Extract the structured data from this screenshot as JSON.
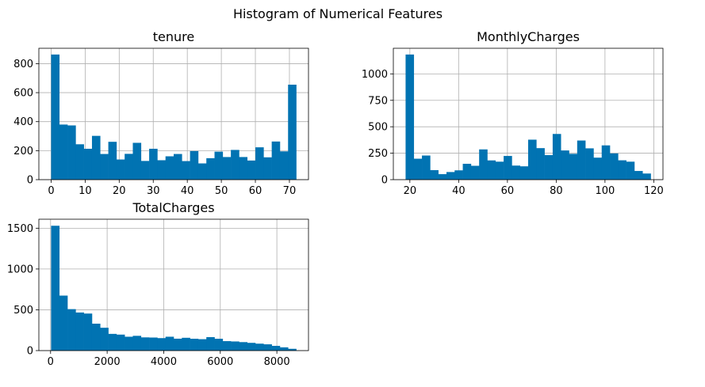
{
  "figure": {
    "suptitle": "Histogram of Numerical Features"
  },
  "colors": {
    "bar": "#0173b2",
    "grid": "#b0b0b0",
    "axis": "#000000",
    "background": "#ffffff"
  },
  "chart_data": [
    {
      "type": "bar",
      "title": "tenure",
      "xlabel": "",
      "ylabel": "",
      "grid": true,
      "bins": 30,
      "bin_range": [
        0,
        72
      ],
      "xlim": [
        -3.6,
        75.6
      ],
      "ylim": [
        0,
        906
      ],
      "xticks": [
        0,
        10,
        20,
        30,
        40,
        50,
        60,
        70
      ],
      "yticks": [
        0,
        200,
        400,
        600,
        800
      ],
      "values": [
        863,
        380,
        374,
        244,
        213,
        302,
        177,
        261,
        139,
        178,
        254,
        129,
        213,
        134,
        161,
        177,
        128,
        197,
        112,
        148,
        193,
        156,
        205,
        156,
        132,
        223,
        154,
        263,
        195,
        655
      ]
    },
    {
      "type": "bar",
      "title": "MonthlyCharges",
      "xlabel": "",
      "ylabel": "",
      "grid": true,
      "bins": 30,
      "bin_range": [
        18.25,
        118.75
      ],
      "xlim": [
        13.225,
        123.775
      ],
      "ylim": [
        0,
        1242
      ],
      "xticks": [
        20,
        40,
        60,
        80,
        100,
        120
      ],
      "yticks": [
        0,
        250,
        500,
        750,
        1000
      ],
      "values": [
        1183,
        198,
        228,
        90,
        52,
        72,
        88,
        150,
        131,
        286,
        182,
        170,
        224,
        133,
        126,
        378,
        298,
        232,
        432,
        276,
        244,
        370,
        296,
        208,
        324,
        248,
        183,
        170,
        82,
        58
      ]
    },
    {
      "type": "bar",
      "title": "TotalCharges",
      "xlabel": "",
      "ylabel": "",
      "grid": true,
      "bins": 30,
      "bin_range": [
        18.8,
        8684.8
      ],
      "xlim": [
        -414.5,
        9118.1
      ],
      "ylim": [
        0,
        1610
      ],
      "xticks": [
        0,
        2000,
        4000,
        6000,
        8000
      ],
      "yticks": [
        0,
        500,
        1000,
        1500
      ],
      "values": [
        1530,
        674,
        508,
        467,
        454,
        330,
        280,
        205,
        196,
        170,
        181,
        162,
        160,
        153,
        170,
        146,
        157,
        145,
        140,
        165,
        145,
        116,
        112,
        104,
        95,
        85,
        77,
        58,
        40,
        22
      ]
    }
  ]
}
